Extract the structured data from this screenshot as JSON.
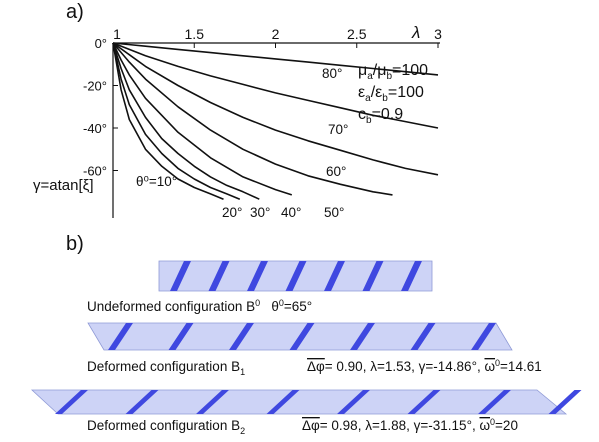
{
  "panel_a": {
    "label": "a)",
    "chart_data": {
      "type": "line",
      "x_axis": {
        "label": "λ",
        "range": [
          1,
          3
        ],
        "ticks": [
          "1",
          "1.5",
          "2",
          "2.5",
          "3"
        ],
        "position": "top"
      },
      "y_axis": {
        "label": "γ=atan[ξ]",
        "range": [
          -80,
          0
        ],
        "ticks": [
          "0°",
          "-20°",
          "-40°",
          "-60°"
        ]
      },
      "series": [
        {
          "name": "θ⁰=10°",
          "points": [
            [
              1,
              0
            ],
            [
              1.05,
              -22
            ],
            [
              1.1,
              -36
            ],
            [
              1.2,
              -50
            ],
            [
              1.3,
              -58
            ],
            [
              1.4,
              -64
            ],
            [
              1.5,
              -68
            ],
            [
              1.6,
              -71
            ],
            [
              1.68,
              -73.5
            ]
          ]
        },
        {
          "name": "20°",
          "points": [
            [
              1,
              0
            ],
            [
              1.05,
              -17
            ],
            [
              1.1,
              -29
            ],
            [
              1.2,
              -43
            ],
            [
              1.3,
              -52
            ],
            [
              1.4,
              -59
            ],
            [
              1.5,
              -64
            ],
            [
              1.6,
              -68
            ],
            [
              1.7,
              -71
            ],
            [
              1.78,
              -73.5
            ]
          ]
        },
        {
          "name": "30°",
          "points": [
            [
              1,
              0
            ],
            [
              1.05,
              -12
            ],
            [
              1.1,
              -22
            ],
            [
              1.2,
              -35
            ],
            [
              1.3,
              -45
            ],
            [
              1.4,
              -52
            ],
            [
              1.5,
              -58
            ],
            [
              1.6,
              -63
            ],
            [
              1.7,
              -67
            ],
            [
              1.8,
              -70
            ],
            [
              1.9,
              -73.5
            ]
          ]
        },
        {
          "name": "40°",
          "points": [
            [
              1,
              0
            ],
            [
              1.05,
              -8
            ],
            [
              1.1,
              -15
            ],
            [
              1.2,
              -26
            ],
            [
              1.4,
              -42
            ],
            [
              1.6,
              -54
            ],
            [
              1.8,
              -63
            ],
            [
              2.0,
              -69
            ],
            [
              2.1,
              -71.5
            ]
          ]
        },
        {
          "name": "50°",
          "points": [
            [
              1,
              0
            ],
            [
              1.1,
              -9
            ],
            [
              1.2,
              -17
            ],
            [
              1.4,
              -30
            ],
            [
              1.6,
              -41
            ],
            [
              1.8,
              -50
            ],
            [
              2.0,
              -57
            ],
            [
              2.2,
              -62.5
            ],
            [
              2.4,
              -66.5
            ],
            [
              2.6,
              -70
            ],
            [
              2.72,
              -71.5
            ]
          ]
        },
        {
          "name": "60°",
          "points": [
            [
              1,
              0
            ],
            [
              1.1,
              -5.5
            ],
            [
              1.2,
              -11
            ],
            [
              1.4,
              -20
            ],
            [
              1.6,
              -28
            ],
            [
              1.8,
              -35
            ],
            [
              2.0,
              -41
            ],
            [
              2.2,
              -46
            ],
            [
              2.4,
              -50.5
            ],
            [
              2.6,
              -55
            ],
            [
              2.8,
              -59
            ],
            [
              3.0,
              -62
            ]
          ]
        },
        {
          "name": "70°",
          "points": [
            [
              1,
              0
            ],
            [
              1.1,
              -3
            ],
            [
              1.2,
              -6
            ],
            [
              1.4,
              -11
            ],
            [
              1.6,
              -15.5
            ],
            [
              1.8,
              -19.5
            ],
            [
              2.0,
              -23.5
            ],
            [
              2.2,
              -27
            ],
            [
              2.4,
              -30.5
            ],
            [
              2.6,
              -34
            ],
            [
              2.8,
              -37
            ],
            [
              3.0,
              -40
            ]
          ]
        },
        {
          "name": "80°",
          "points": [
            [
              1,
              0
            ],
            [
              1.2,
              -1.5
            ],
            [
              1.4,
              -3
            ],
            [
              1.6,
              -4.5
            ],
            [
              1.8,
              -6
            ],
            [
              2.0,
              -7.5
            ],
            [
              2.2,
              -9
            ],
            [
              2.4,
              -10.5
            ],
            [
              2.6,
              -12
            ],
            [
              2.8,
              -13.5
            ],
            [
              3.0,
              -15
            ]
          ]
        }
      ],
      "annotations": [
        {
          "text": "μa/μb=100",
          "main": "μ",
          "sub": "a",
          "mid": "/μ",
          "sub2": "b",
          "tail": "=100"
        },
        {
          "text": "εa/εb=100",
          "main": "ε",
          "sub": "a",
          "mid": "/ε",
          "sub2": "b",
          "tail": "=100"
        },
        {
          "text": "cb=0.9",
          "main": "c",
          "sub": "b",
          "mid": "",
          "sub2": "",
          "tail": "=0.9"
        }
      ]
    }
  },
  "panel_b": {
    "label": "b)",
    "stripe_color": "#3f48e0",
    "band_color": "#cdd3f6",
    "band_edge_color": "#8f9ad6",
    "bands": [
      {
        "caption_main": "Undeformed configuration B",
        "caption_sup": "0",
        "caption_tail": "   θ",
        "caption_tail_sup": "0",
        "caption_end": "=65°"
      },
      {
        "caption_main": "Deformed configuration B",
        "caption_sub": "1",
        "params": {
          "delta_phi_symbol": "Δφ",
          "delta_phi": "= 0.90",
          "lambda": "λ=1.53",
          "gamma": "γ=-14.86°",
          "omega_symbol": "ω",
          "omega_sup": "0",
          "omega": "=14.61"
        }
      },
      {
        "caption_main": "Deformed configuration B",
        "caption_sub": "2",
        "params": {
          "delta_phi_symbol": "Δφ",
          "delta_phi": "= 0.98",
          "lambda": "λ=1.88",
          "gamma": "γ=-31.15°",
          "omega_symbol": "ω",
          "omega_sup": "0",
          "omega": "=20"
        }
      }
    ]
  }
}
